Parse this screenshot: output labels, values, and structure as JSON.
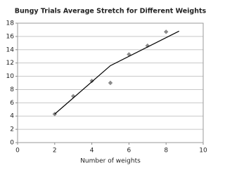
{
  "chart_data": {
    "type": "scatter",
    "title": "Bungy Trials Average Stretch for Different Weights",
    "x_label": "Number of weights",
    "series": [
      {
        "kind": "markers",
        "color": "#8a8a8a",
        "x": [
          2,
          3,
          4,
          5,
          6,
          7,
          8
        ],
        "values": [
          4.3,
          7.0,
          9.3,
          9.0,
          13.3,
          14.6,
          16.7
        ]
      },
      {
        "kind": "line",
        "color": "#000000",
        "x": [
          2,
          5,
          8.7
        ],
        "values": [
          4.3,
          11.6,
          16.8
        ]
      }
    ],
    "xlim": [
      0,
      10
    ],
    "xticks": [
      0,
      2,
      4,
      6,
      8,
      10
    ],
    "ylim": [
      0,
      18
    ],
    "yticks": [
      0,
      2,
      4,
      6,
      8,
      10,
      12,
      14,
      16,
      18
    ],
    "grid": true
  }
}
